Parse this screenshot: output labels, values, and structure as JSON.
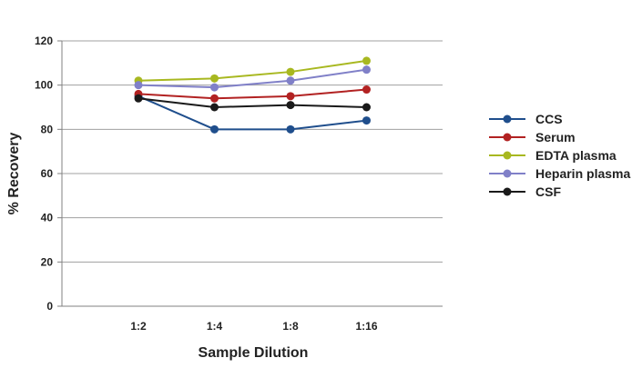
{
  "chart_data": {
    "type": "line",
    "title": "",
    "xlabel": "Sample Dilution",
    "ylabel": "% Recovery",
    "categories": [
      "1:2",
      "1:4",
      "1:8",
      "1:16"
    ],
    "ylim": [
      0,
      120
    ],
    "yticks": [
      0,
      20,
      40,
      60,
      80,
      100,
      120
    ],
    "grid": true,
    "legend_position": "right",
    "series": [
      {
        "name": "CCS",
        "color": "#1f4e8c",
        "values": [
          95,
          80,
          80,
          84
        ]
      },
      {
        "name": "Serum",
        "color": "#b22222",
        "values": [
          96,
          94,
          95,
          98
        ]
      },
      {
        "name": "EDTA plasma",
        "color": "#a8b820",
        "values": [
          102,
          103,
          106,
          111
        ]
      },
      {
        "name": "Heparin plasma",
        "color": "#8080c8",
        "values": [
          100,
          99,
          102,
          107
        ]
      },
      {
        "name": "CSF",
        "color": "#1a1a1a",
        "values": [
          94,
          90,
          91,
          90
        ]
      }
    ]
  }
}
